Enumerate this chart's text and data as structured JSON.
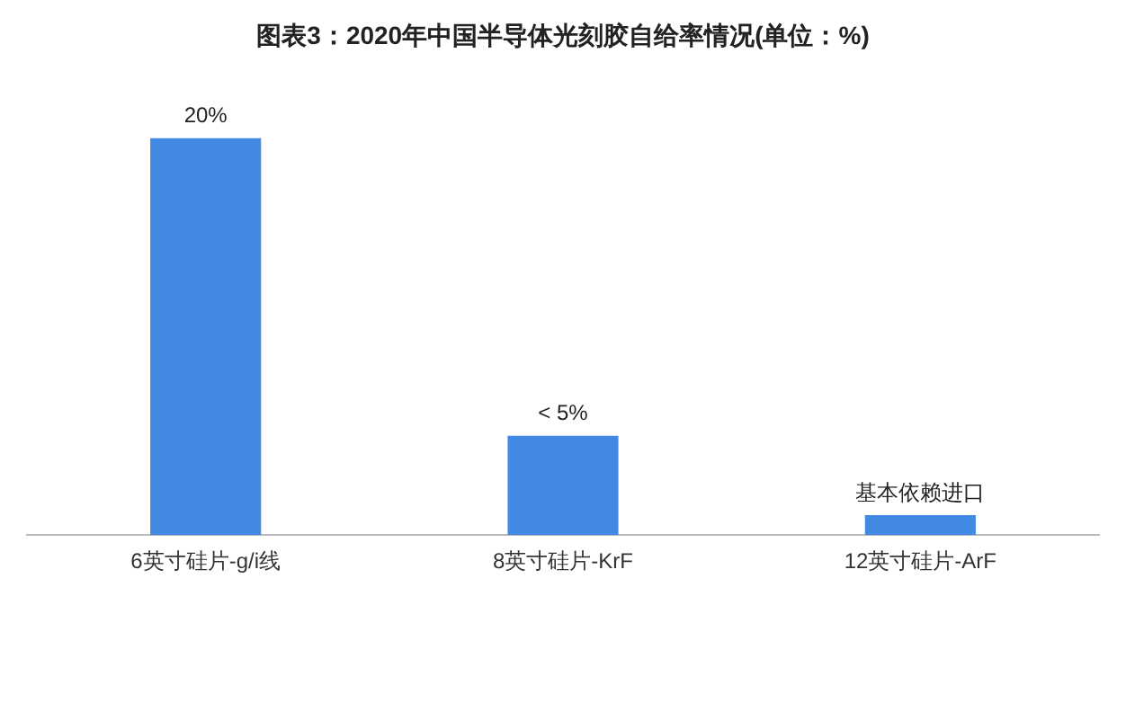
{
  "chart_data": {
    "type": "bar",
    "title": "图表3：2020年中国半导体光刻胶自给率情况(单位：%)",
    "categories": [
      "6英寸硅片-g/i线",
      "8英寸硅片-KrF",
      "12英寸硅片-ArF"
    ],
    "values": [
      20,
      5,
      1
    ],
    "value_labels": [
      "20%",
      "< 5%",
      "基本依赖进口"
    ],
    "color": "#4189e3",
    "grid": false,
    "legend": false
  }
}
